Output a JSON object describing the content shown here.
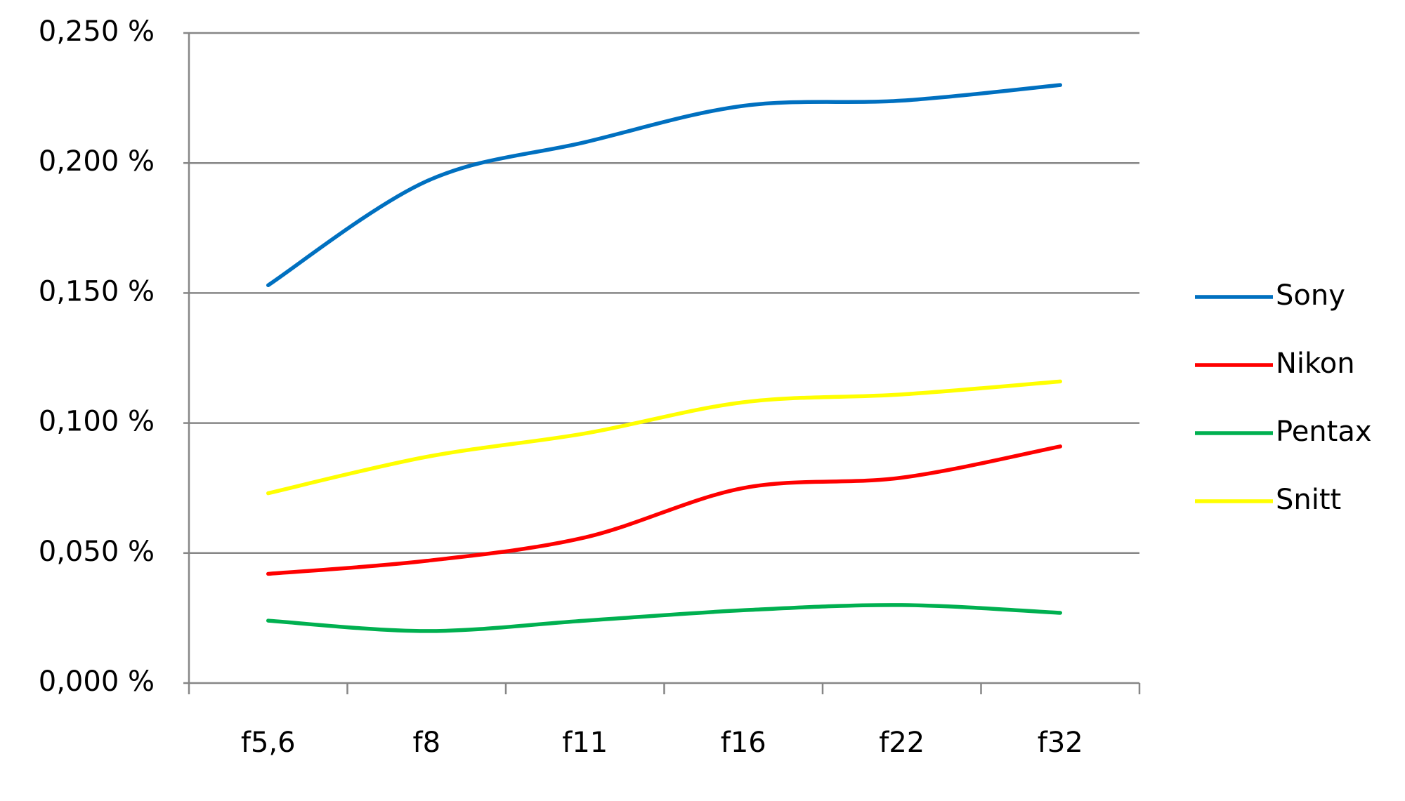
{
  "chart_data": {
    "type": "line",
    "categories": [
      "f5,6",
      "f8",
      "f11",
      "f16",
      "f22",
      "f32"
    ],
    "series": [
      {
        "name": "Sony",
        "color": "#0070c0",
        "values": [
          0.153,
          0.193,
          0.208,
          0.222,
          0.224,
          0.23
        ]
      },
      {
        "name": "Nikon",
        "color": "#ff0000",
        "values": [
          0.042,
          0.047,
          0.056,
          0.075,
          0.079,
          0.091
        ]
      },
      {
        "name": "Pentax",
        "color": "#00b050",
        "values": [
          0.024,
          0.02,
          0.024,
          0.028,
          0.03,
          0.027
        ]
      },
      {
        "name": "Snitt",
        "color": "#ffff00",
        "values": [
          0.073,
          0.087,
          0.096,
          0.108,
          0.111,
          0.116
        ]
      }
    ],
    "ylim": [
      0,
      0.25
    ],
    "yticks": [
      {
        "value": 0,
        "label": "0,000 %"
      },
      {
        "value": 0.05,
        "label": "0,050 %"
      },
      {
        "value": 0.1,
        "label": "0,100 %"
      },
      {
        "value": 0.15,
        "label": "0,150 %"
      },
      {
        "value": 0.2,
        "label": "0,200 %"
      },
      {
        "value": 0.25,
        "label": "0,250 %"
      }
    ],
    "grid": true,
    "smooth": true,
    "legend": "right"
  }
}
